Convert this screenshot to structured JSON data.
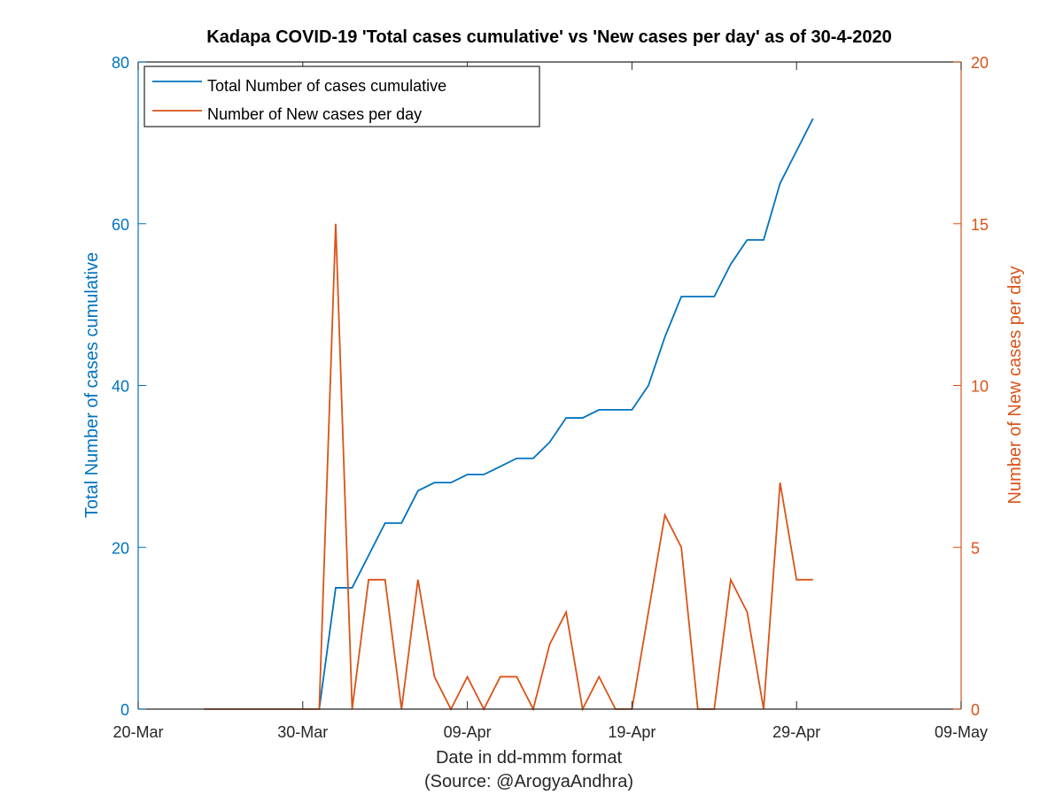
{
  "chart_data": {
    "type": "line",
    "title": "Kadapa COVID-19 'Total cases cumulative' vs 'New cases per day' as of 30-4-2020",
    "xlabel": "Date in dd-mmm format",
    "xlabel_source": "(Source: @ArogyaAndhra)",
    "ylabel_left": "Total Number of cases cumulative",
    "ylabel_right": "Number of New cases per day",
    "xlim": [
      "2020-03-20",
      "2020-05-09"
    ],
    "xticks": [
      "2020-03-20",
      "2020-03-30",
      "2020-04-09",
      "2020-04-19",
      "2020-04-29",
      "2020-05-09"
    ],
    "xtick_labels": [
      "20-Mar",
      "30-Mar",
      "09-Apr",
      "19-Apr",
      "29-Apr",
      "09-May"
    ],
    "ylim_left": [
      0,
      80
    ],
    "yticks_left": [
      0,
      20,
      40,
      60,
      80
    ],
    "ylim_right": [
      0,
      20
    ],
    "yticks_right": [
      0,
      5,
      10,
      15,
      20
    ],
    "grid": false,
    "legend_position": "top-left",
    "colors": {
      "left": "#0072BD",
      "right": "#D95319",
      "axes": "#262626"
    },
    "series": [
      {
        "name": "Total Number of cases cumulative",
        "axis": "left",
        "color": "#0072BD",
        "points": [
          [
            "2020-03-31",
            0
          ],
          [
            "2020-04-01",
            15
          ],
          [
            "2020-04-02",
            15
          ],
          [
            "2020-04-03",
            19
          ],
          [
            "2020-04-04",
            23
          ],
          [
            "2020-04-05",
            23
          ],
          [
            "2020-04-06",
            27
          ],
          [
            "2020-04-07",
            28
          ],
          [
            "2020-04-08",
            28
          ],
          [
            "2020-04-09",
            29
          ],
          [
            "2020-04-10",
            29
          ],
          [
            "2020-04-11",
            30
          ],
          [
            "2020-04-12",
            31
          ],
          [
            "2020-04-13",
            31
          ],
          [
            "2020-04-14",
            33
          ],
          [
            "2020-04-15",
            36
          ],
          [
            "2020-04-16",
            36
          ],
          [
            "2020-04-17",
            37
          ],
          [
            "2020-04-18",
            37
          ],
          [
            "2020-04-19",
            37
          ],
          [
            "2020-04-20",
            40
          ],
          [
            "2020-04-21",
            46
          ],
          [
            "2020-04-22",
            51
          ],
          [
            "2020-04-23",
            51
          ],
          [
            "2020-04-24",
            51
          ],
          [
            "2020-04-25",
            55
          ],
          [
            "2020-04-26",
            58
          ],
          [
            "2020-04-27",
            58
          ],
          [
            "2020-04-28",
            65
          ],
          [
            "2020-04-29",
            69
          ],
          [
            "2020-04-30",
            73
          ]
        ]
      },
      {
        "name": "Number of New cases per day",
        "axis": "right",
        "color": "#D95319",
        "points": [
          [
            "2020-03-24",
            0
          ],
          [
            "2020-03-25",
            0
          ],
          [
            "2020-03-26",
            0
          ],
          [
            "2020-03-27",
            0
          ],
          [
            "2020-03-28",
            0
          ],
          [
            "2020-03-29",
            0
          ],
          [
            "2020-03-30",
            0
          ],
          [
            "2020-03-31",
            0
          ],
          [
            "2020-04-01",
            15
          ],
          [
            "2020-04-02",
            0
          ],
          [
            "2020-04-03",
            4
          ],
          [
            "2020-04-04",
            4
          ],
          [
            "2020-04-05",
            0
          ],
          [
            "2020-04-06",
            4
          ],
          [
            "2020-04-07",
            1
          ],
          [
            "2020-04-08",
            0
          ],
          [
            "2020-04-09",
            1
          ],
          [
            "2020-04-10",
            0
          ],
          [
            "2020-04-11",
            1
          ],
          [
            "2020-04-12",
            1
          ],
          [
            "2020-04-13",
            0
          ],
          [
            "2020-04-14",
            2
          ],
          [
            "2020-04-15",
            3
          ],
          [
            "2020-04-16",
            0
          ],
          [
            "2020-04-17",
            1
          ],
          [
            "2020-04-18",
            0
          ],
          [
            "2020-04-19",
            0
          ],
          [
            "2020-04-20",
            3
          ],
          [
            "2020-04-21",
            6
          ],
          [
            "2020-04-22",
            5
          ],
          [
            "2020-04-23",
            0
          ],
          [
            "2020-04-24",
            0
          ],
          [
            "2020-04-25",
            4
          ],
          [
            "2020-04-26",
            3
          ],
          [
            "2020-04-27",
            0
          ],
          [
            "2020-04-28",
            7
          ],
          [
            "2020-04-29",
            4
          ],
          [
            "2020-04-30",
            4
          ]
        ]
      }
    ]
  }
}
